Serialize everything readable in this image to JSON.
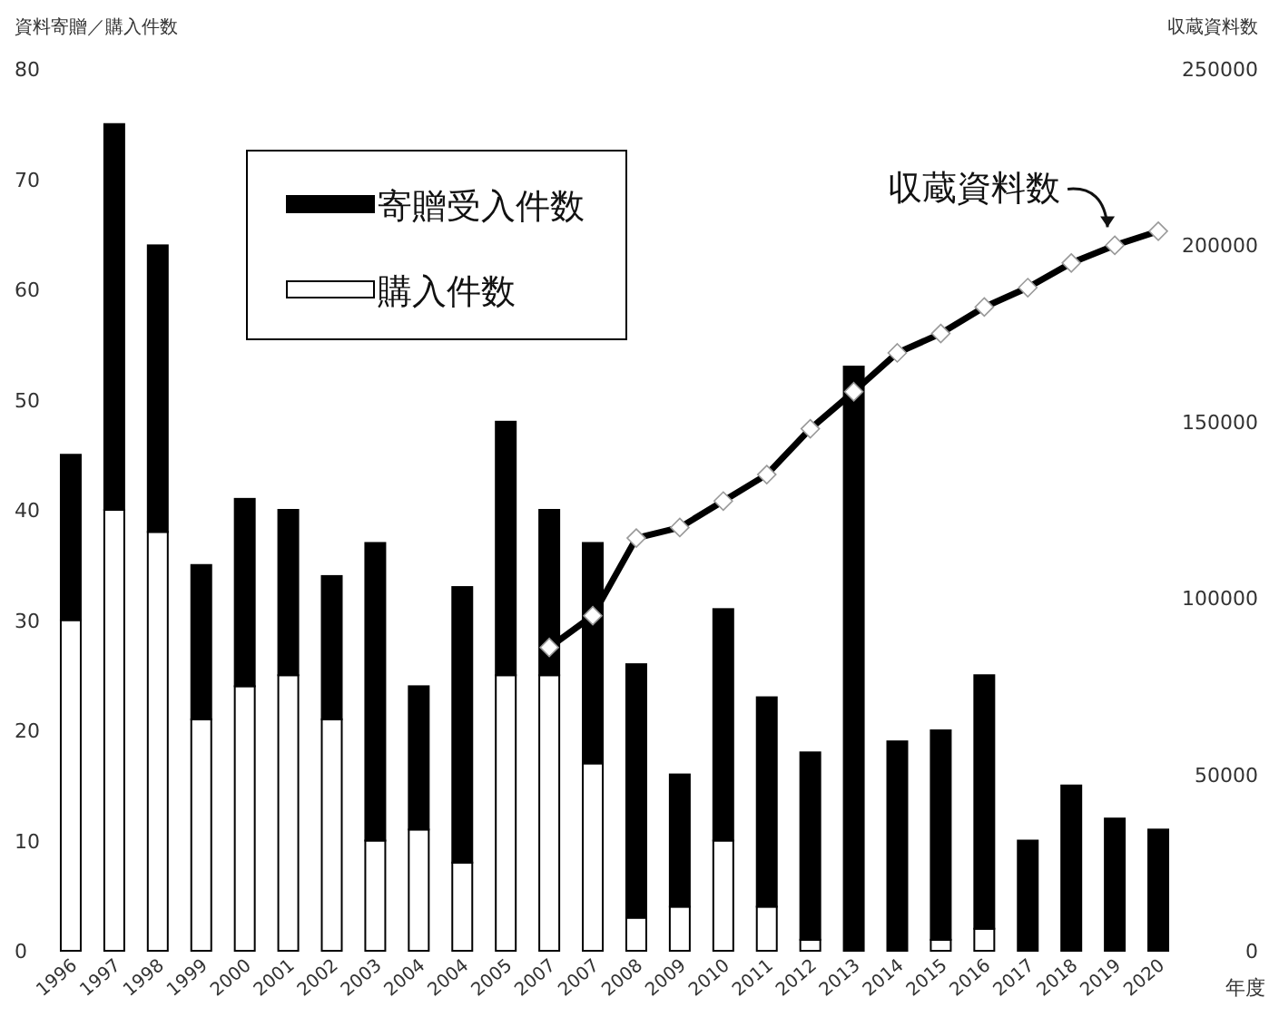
{
  "chart_data": {
    "type": "bar",
    "stacked": true,
    "xlabel": "年度",
    "ylabel": "資料寄贈／購入件数",
    "y2label": "収蔵資料数",
    "categories": [
      "1996",
      "1997",
      "1998",
      "1999",
      "2000",
      "2001",
      "2002",
      "2003",
      "2004",
      "2004",
      "2005",
      "2007",
      "2007",
      "2008",
      "2009",
      "2010",
      "2011",
      "2012",
      "2013",
      "2014",
      "2015",
      "2016",
      "2017",
      "2018",
      "2019",
      "2020"
    ],
    "series": [
      {
        "name": "購入件数",
        "color": "#ffffff",
        "values": [
          30,
          40,
          38,
          21,
          24,
          25,
          21,
          10,
          11,
          8,
          25,
          25,
          17,
          3,
          4,
          10,
          4,
          1,
          0,
          0,
          1,
          2,
          0,
          0,
          0,
          0
        ]
      },
      {
        "name": "寄贈受入件数",
        "color": "#000000",
        "values": [
          15,
          35,
          26,
          14,
          17,
          15,
          13,
          27,
          13,
          25,
          23,
          15,
          20,
          23,
          12,
          21,
          19,
          17,
          53,
          19,
          19,
          23,
          10,
          15,
          12,
          11
        ]
      },
      {
        "name": "収蔵資料数",
        "type": "line",
        "axis": "y2",
        "color": "#000000",
        "marker": "diamond",
        "values": [
          null,
          null,
          null,
          null,
          null,
          null,
          null,
          null,
          null,
          null,
          null,
          86000,
          95000,
          117000,
          120000,
          127500,
          135000,
          148000,
          158500,
          169500,
          175000,
          182500,
          188000,
          195000,
          200000,
          204000
        ]
      }
    ],
    "ylim": [
      0,
      80
    ],
    "yticks": [
      0,
      10,
      20,
      30,
      40,
      50,
      60,
      70,
      80
    ],
    "y2lim": [
      0,
      250000
    ],
    "y2ticks": [
      0,
      50000,
      100000,
      150000,
      200000,
      250000
    ],
    "legend": "top left",
    "grid": false
  }
}
